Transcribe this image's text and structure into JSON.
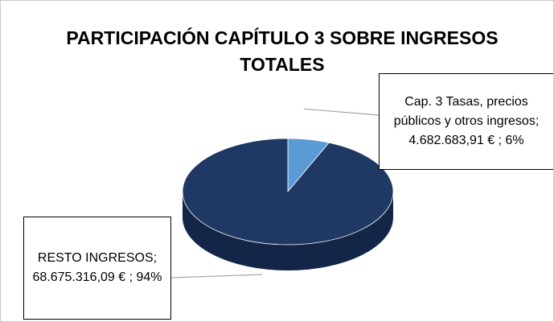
{
  "chart_data": {
    "type": "pie",
    "title": "PARTICIPACIÓN CAPÍTULO 3 SOBRE INGRESOS TOTALES",
    "categories": [
      "Cap. 3 Tasas, precios públicos y otros ingresos;",
      "RESTO INGRESOS;"
    ],
    "values": [
      4682683.91,
      68675316.09
    ],
    "value_labels": [
      "4.682.683,91 € ; 6%",
      "68.675.316,09 € ; 94%"
    ],
    "colors": [
      "#5b9bd5",
      "#1f3864"
    ],
    "side_colors": [
      "#3f77ad",
      "#142647"
    ]
  }
}
